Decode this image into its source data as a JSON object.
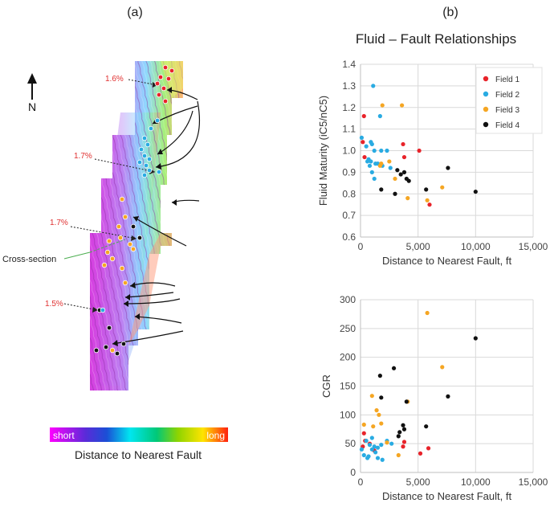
{
  "figure": {
    "label_a": "(a)",
    "label_b": "(b)",
    "title": "Fluid – Fault Relationships"
  },
  "map": {
    "north_label": "N",
    "cross_section_label": "Cross-section",
    "annotations": [
      "1.6%",
      "1.7%",
      "1.7%",
      "1.5%"
    ],
    "colorbar": {
      "low_label": "short",
      "high_label": "long",
      "title": "Distance to Nearest Fault"
    },
    "colors": {
      "field1": "#e8232a",
      "field2": "#29abe2",
      "field3": "#f5a623",
      "field4": "#111111"
    }
  },
  "chart_data": [
    {
      "type": "scatter",
      "title": "",
      "xlabel": "Distance to Nearest Fault, ft",
      "ylabel": "Fluid Maturity (iC5/nC5)",
      "xlim": [
        0,
        15000
      ],
      "ylim": [
        0.6,
        1.4
      ],
      "xticks": [
        0,
        5000,
        10000,
        15000
      ],
      "xtick_labels": [
        "0",
        "5,000",
        "10,000",
        "15,000"
      ],
      "yticks": [
        0.6,
        0.7,
        0.8,
        0.9,
        1.0,
        1.1,
        1.2,
        1.3,
        1.4
      ],
      "ytick_labels": [
        "0.6",
        "0.7",
        "0.8",
        "0.9",
        "1.0",
        "1.1",
        "1.2",
        "1.3",
        "1.4"
      ],
      "grid": true,
      "legend_position": "top-right",
      "series": [
        {
          "name": "Field 1",
          "color": "#e8232a",
          "x": [
            300,
            200,
            350,
            3700,
            5100,
            3800,
            6000
          ],
          "y": [
            1.16,
            1.04,
            0.97,
            1.03,
            1.0,
            0.97,
            0.75
          ]
        },
        {
          "name": "Field 2",
          "color": "#29abe2",
          "x": [
            1100,
            900,
            1000,
            100,
            500,
            1200,
            700,
            900,
            1300,
            1500,
            1800,
            1900,
            2300,
            2600,
            1000,
            1200,
            1700,
            800,
            600
          ],
          "y": [
            1.3,
            1.04,
            1.03,
            1.06,
            1.02,
            1.0,
            0.96,
            0.95,
            0.94,
            0.94,
            1.0,
            0.93,
            1.0,
            0.92,
            0.9,
            0.87,
            1.16,
            0.93,
            0.95
          ]
        },
        {
          "name": "Field 3",
          "color": "#f5a623",
          "x": [
            1900,
            3600,
            2500,
            1700,
            1800,
            3000,
            4100,
            5800,
            7100
          ],
          "y": [
            1.21,
            1.21,
            0.95,
            0.93,
            0.94,
            0.87,
            0.78,
            0.77,
            0.83
          ]
        },
        {
          "name": "Field 4",
          "color": "#111111",
          "x": [
            3200,
            3500,
            3800,
            4000,
            4200,
            1800,
            3000,
            5700,
            7600,
            10000
          ],
          "y": [
            0.91,
            0.89,
            0.9,
            0.87,
            0.86,
            0.82,
            0.8,
            0.82,
            0.92,
            0.81
          ]
        }
      ]
    },
    {
      "type": "scatter",
      "title": "",
      "xlabel": "Distance to Nearest Fault, ft",
      "ylabel": "CGR",
      "xlim": [
        0,
        15000
      ],
      "ylim": [
        0,
        300
      ],
      "xticks": [
        0,
        5000,
        10000,
        15000
      ],
      "xtick_labels": [
        "0",
        "5,000",
        "10,000",
        "15,000"
      ],
      "yticks": [
        0,
        50,
        100,
        150,
        200,
        250,
        300
      ],
      "ytick_labels": [
        "0",
        "50",
        "100",
        "150",
        "200",
        "250",
        "300"
      ],
      "grid": true,
      "series": [
        {
          "name": "Field 1",
          "color": "#e8232a",
          "x": [
            300,
            200,
            800,
            1200,
            400,
            3700,
            5200,
            5900,
            3800
          ],
          "y": [
            68,
            45,
            50,
            38,
            55,
            45,
            33,
            42,
            53
          ]
        },
        {
          "name": "Field 2",
          "color": "#29abe2",
          "x": [
            100,
            300,
            700,
            1000,
            1200,
            1500,
            1800,
            2300,
            2700,
            1000,
            600,
            1500,
            1300,
            800,
            500,
            1900
          ],
          "y": [
            40,
            30,
            28,
            40,
            45,
            43,
            48,
            55,
            50,
            60,
            25,
            25,
            35,
            48,
            55,
            22
          ]
        },
        {
          "name": "Field 3",
          "color": "#f5a623",
          "x": [
            1000,
            1400,
            1600,
            1800,
            1100,
            3300,
            4100,
            5800,
            7100,
            300,
            2300
          ],
          "y": [
            133,
            108,
            100,
            85,
            80,
            30,
            123,
            277,
            183,
            83,
            52
          ]
        },
        {
          "name": "Field 4",
          "color": "#111111",
          "x": [
            1700,
            2900,
            1800,
            3400,
            3700,
            3800,
            4000,
            5700,
            7600,
            10000,
            3300
          ],
          "y": [
            168,
            181,
            130,
            70,
            82,
            75,
            123,
            80,
            132,
            233,
            63
          ]
        }
      ]
    }
  ]
}
